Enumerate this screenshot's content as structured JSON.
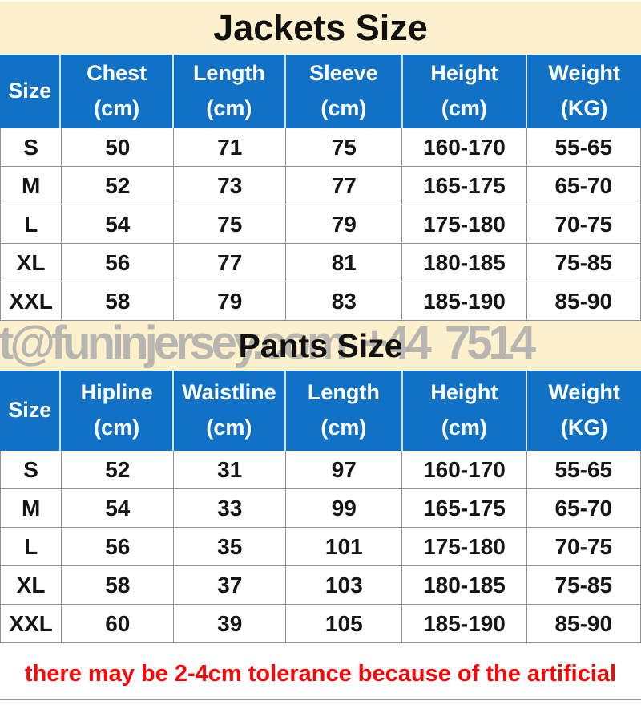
{
  "colors": {
    "banner_bg": "#FCF0CD",
    "header_bg": "#1171C4",
    "grid_gray": "#8F8F8F",
    "note_red": "#FA0606",
    "watermark_gray": "#ABABAB"
  },
  "watermark": {
    "text": "t@funinjersey.com  +44 7514"
  },
  "jackets": {
    "title": "Jackets Size",
    "columns": [
      {
        "name": "Size",
        "unit": ""
      },
      {
        "name": "Chest",
        "unit": "(cm)"
      },
      {
        "name": "Length",
        "unit": "(cm)"
      },
      {
        "name": "Sleeve",
        "unit": "(cm)"
      },
      {
        "name": "Height",
        "unit": "(cm)"
      },
      {
        "name": "Weight",
        "unit": "(KG)"
      }
    ],
    "rows": [
      [
        "S",
        "50",
        "71",
        "75",
        "160-170",
        "55-65"
      ],
      [
        "M",
        "52",
        "73",
        "77",
        "165-175",
        "65-70"
      ],
      [
        "L",
        "54",
        "75",
        "79",
        "175-180",
        "70-75"
      ],
      [
        "XL",
        "56",
        "77",
        "81",
        "180-185",
        "75-85"
      ],
      [
        "XXL",
        "58",
        "79",
        "83",
        "185-190",
        "85-90"
      ]
    ]
  },
  "pants": {
    "title": "Pants Size",
    "columns": [
      {
        "name": "Size",
        "unit": ""
      },
      {
        "name": "Hipline",
        "unit": "(cm)"
      },
      {
        "name": "Waistline",
        "unit": "(cm)"
      },
      {
        "name": "Length",
        "unit": "(cm)"
      },
      {
        "name": "Height",
        "unit": "(cm)"
      },
      {
        "name": "Weight",
        "unit": "(KG)"
      }
    ],
    "rows": [
      [
        "S",
        "52",
        "31",
        "97",
        "160-170",
        "55-65"
      ],
      [
        "M",
        "54",
        "33",
        "99",
        "165-175",
        "65-70"
      ],
      [
        "L",
        "56",
        "35",
        "101",
        "175-180",
        "70-75"
      ],
      [
        "XL",
        "58",
        "37",
        "103",
        "180-185",
        "75-85"
      ],
      [
        "XXL",
        "60",
        "39",
        "105",
        "185-190",
        "85-90"
      ]
    ]
  },
  "footer": {
    "note": "there may be 2-4cm tolerance because of the artificial"
  }
}
